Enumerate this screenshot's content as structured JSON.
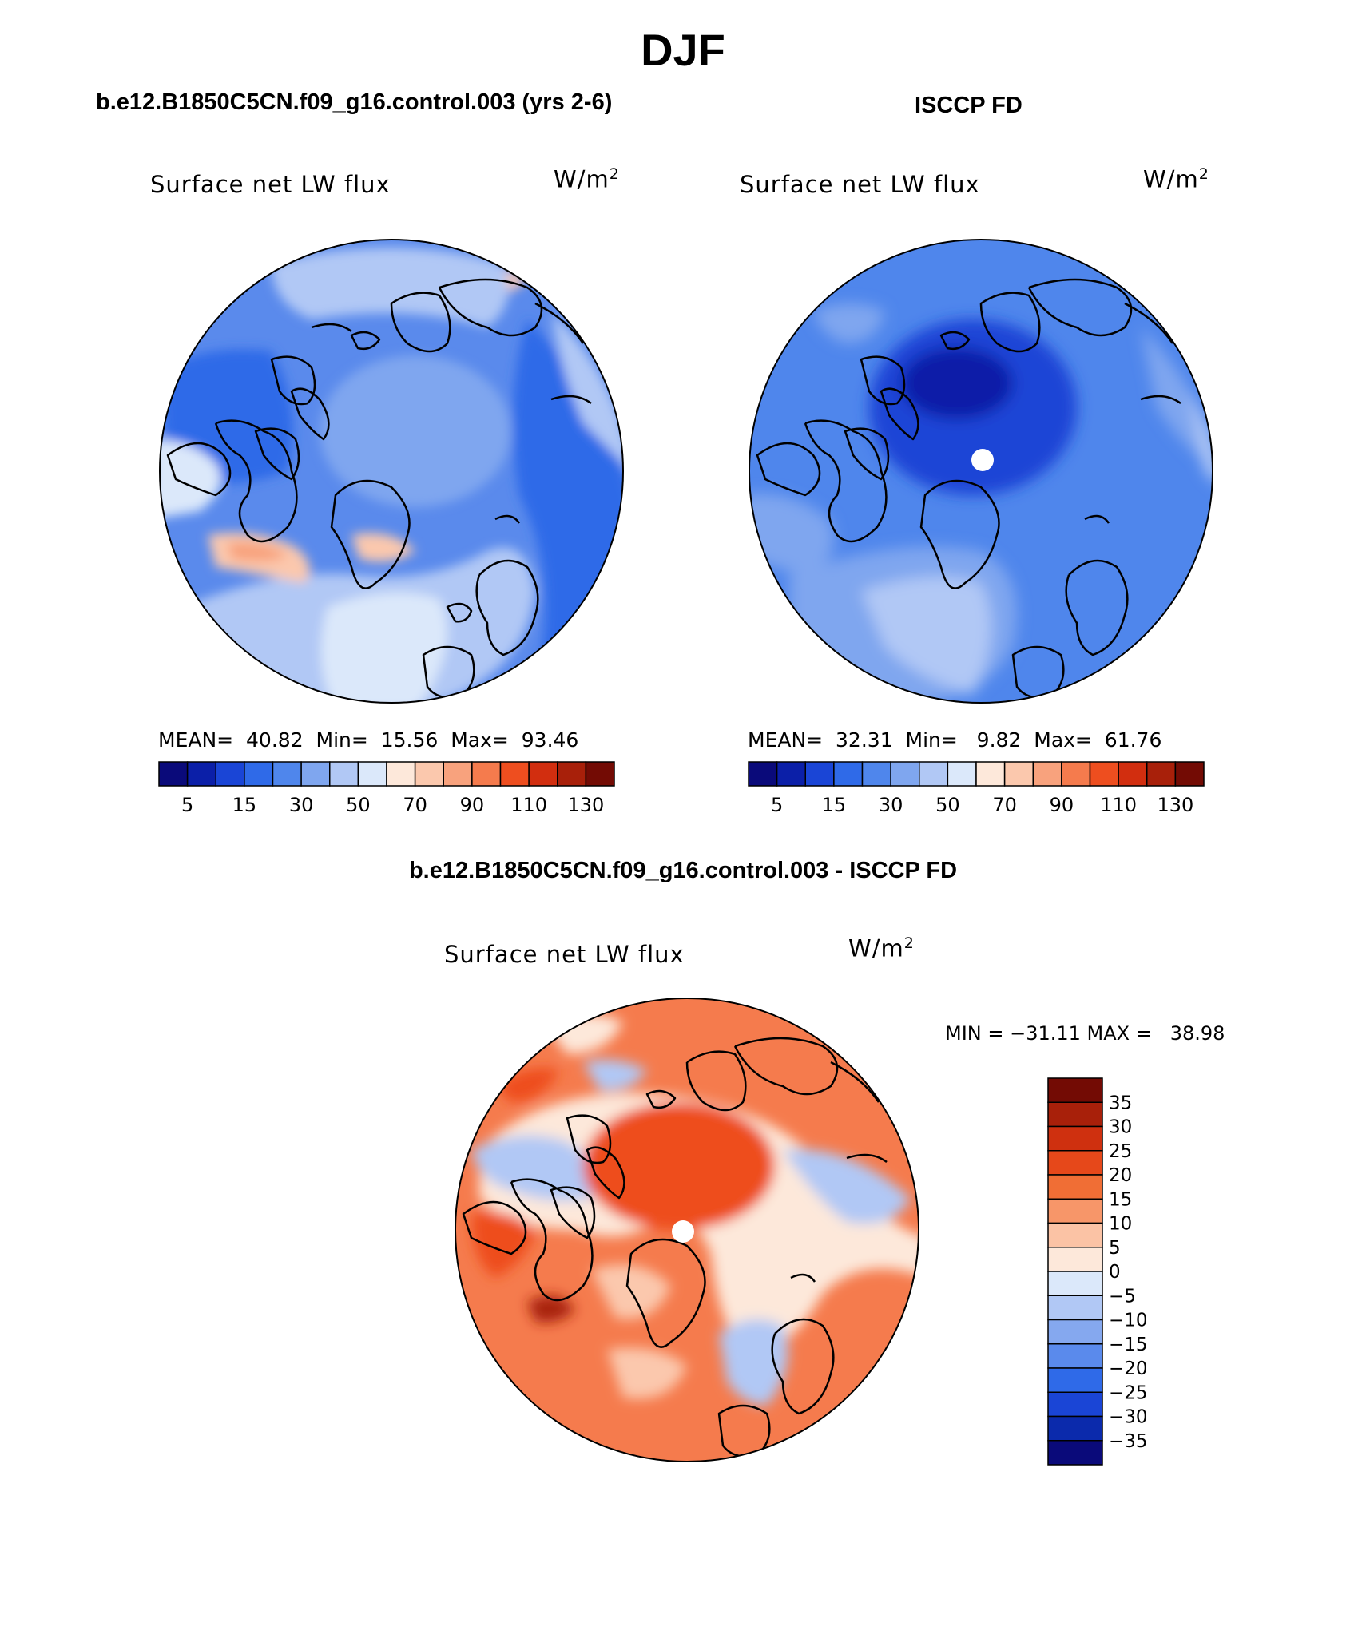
{
  "season": "DJF",
  "panels": {
    "model": {
      "case_title": "b.e12.B1850C5CN.f09_g16.control.003 (yrs 2-6)",
      "variable": "Surface net LW flux",
      "units_base": "W/m",
      "units_exp": "2",
      "stats": {
        "mean_label": "MEAN=",
        "mean": "40.82",
        "min_label": "Min=",
        "min": "15.56",
        "max_label": "Max=",
        "max": "93.46"
      }
    },
    "obs": {
      "case_title": "ISCCP FD",
      "variable": "Surface net LW flux",
      "units_base": "W/m",
      "units_exp": "2",
      "stats": {
        "mean_label": "MEAN=",
        "mean": "32.31",
        "min_label": "Min=",
        "min": "9.82",
        "max_label": "Max=",
        "max": "61.76"
      }
    },
    "diff": {
      "case_title": "b.e12.B1850C5CN.f09_g16.control.003 - ISCCP FD",
      "variable": "Surface net LW flux",
      "units_base": "W/m",
      "units_exp": "2",
      "minmax": "MIN = −31.11 MAX =   38.98"
    }
  },
  "colorbar_horizontal": {
    "colors": [
      "#0a0a7a",
      "#0b1fa8",
      "#1a45d6",
      "#2f6ae8",
      "#4f86ec",
      "#7fa6ef",
      "#b1c8f5",
      "#dbe8fa",
      "#fde8da",
      "#fbc8ad",
      "#f8a27d",
      "#f57b4d",
      "#ee4e1f",
      "#d22e0f",
      "#a8200a",
      "#730b04"
    ],
    "tick_labels": [
      "5",
      "15",
      "30",
      "50",
      "70",
      "90",
      "110",
      "130"
    ]
  },
  "colorbar_vertical": {
    "colors": [
      "#730b04",
      "#a8200a",
      "#cf300f",
      "#e6481a",
      "#f06e35",
      "#f79669",
      "#fbc3a5",
      "#fde8da",
      "#dbe8fa",
      "#b1c8f5",
      "#85a8ef",
      "#5a8aec",
      "#2f6ae8",
      "#1a45d6",
      "#0b2aac",
      "#0a0a7a"
    ],
    "tick_labels": [
      "35",
      "30",
      "25",
      "20",
      "15",
      "10",
      "5",
      "0",
      "−5",
      "−10",
      "−15",
      "−20",
      "−25",
      "−30",
      "−35"
    ]
  },
  "map_colors": {
    "model": {
      "base": "#5a8aec",
      "ocean_light": "#b1c8f5",
      "arctic": "#7fa6ef",
      "warm": "#fbc8ad",
      "hot": "#f8a27d",
      "deep": "#2f6ae8",
      "pale": "#dbe8fa"
    },
    "obs": {
      "base": "#4f86ec",
      "arctic": "#1a45d6",
      "light": "#7fa6ef",
      "pale": "#b1c8f5"
    },
    "diff": {
      "base": "#f57b4d",
      "arctic": "#ee4e1f",
      "light": "#fbc8ad",
      "cool": "#b1c8f5",
      "pale": "#fde8da",
      "dark": "#a8200a"
    }
  }
}
